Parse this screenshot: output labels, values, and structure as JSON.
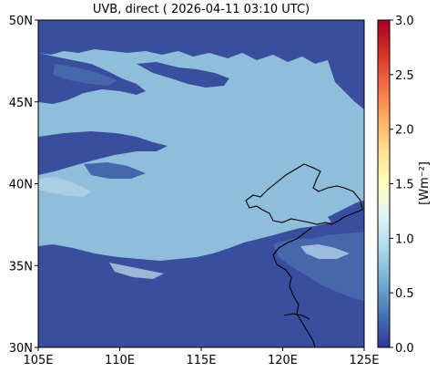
{
  "title": "UVB, direct ( 2026-04-11 03:10 UTC)",
  "map": {
    "lon_range": [
      105,
      125
    ],
    "lat_range": [
      30,
      50
    ],
    "x_ticks": [
      {
        "value": 105,
        "label": "105E"
      },
      {
        "value": 110,
        "label": "110E"
      },
      {
        "value": 115,
        "label": "115E"
      },
      {
        "value": 120,
        "label": "120E"
      },
      {
        "value": 125,
        "label": "125E"
      }
    ],
    "y_ticks": [
      {
        "value": 30,
        "label": "30N"
      },
      {
        "value": 35,
        "label": "35N"
      },
      {
        "value": 40,
        "label": "40N"
      },
      {
        "value": 45,
        "label": "45N"
      },
      {
        "value": 50,
        "label": "50N"
      }
    ],
    "field_colors": {
      "clear_sky": "#8fbedb",
      "cloud_dense": "#3a4ea0",
      "cloud_mid": "#4767ad",
      "cloud_light": "#b3d2e6"
    }
  },
  "colorbar": {
    "label": "[Wm⁻²]",
    "range": [
      0.0,
      3.0
    ],
    "ticks": [
      {
        "value": 0.0,
        "label": "0.0"
      },
      {
        "value": 0.5,
        "label": "0.5"
      },
      {
        "value": 1.0,
        "label": "1.0"
      },
      {
        "value": 1.5,
        "label": "1.5"
      },
      {
        "value": 2.0,
        "label": "2.0"
      },
      {
        "value": 2.5,
        "label": "2.5"
      },
      {
        "value": 3.0,
        "label": "3.0"
      }
    ],
    "colormap": "RdYlBu_r"
  }
}
